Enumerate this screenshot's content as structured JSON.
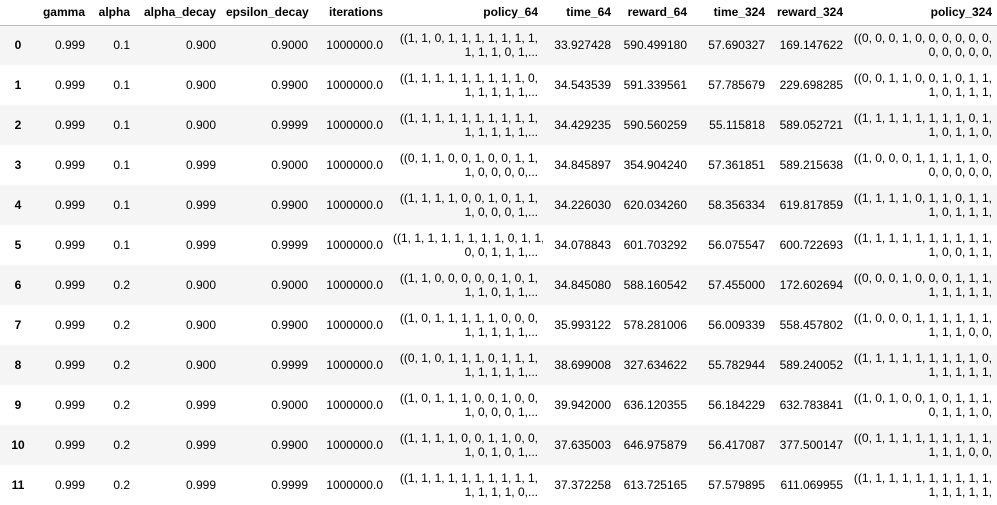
{
  "columns": [
    "",
    "gamma",
    "alpha",
    "alpha_decay",
    "epsilon_decay",
    "iterations",
    "policy_64",
    "time_64",
    "reward_64",
    "time_324",
    "reward_324",
    "policy_324"
  ],
  "rows": [
    {
      "index": "0",
      "gamma": "0.999",
      "alpha": "0.1",
      "alpha_decay": "0.900",
      "epsilon_decay": "0.9000",
      "iterations": "1000000.0",
      "policy_64": [
        "((1, 1, 0, 1, 1, 1, 1, 1, 1, 1,",
        "1, 1, 1, 0, 1,..."
      ],
      "time_64": "33.927428",
      "reward_64": "590.499180",
      "time_324": "57.690327",
      "reward_324": "169.147622",
      "policy_324": [
        "((0, 0, 0, 1, 0, 0, 0, 0, 0, 0,",
        "0, 0, 0, 0, 0,"
      ]
    },
    {
      "index": "1",
      "gamma": "0.999",
      "alpha": "0.1",
      "alpha_decay": "0.900",
      "epsilon_decay": "0.9900",
      "iterations": "1000000.0",
      "policy_64": [
        "((1, 1, 1, 1, 1, 1, 1, 1, 1, 0,",
        "1, 1, 1, 1, 1,..."
      ],
      "time_64": "34.543539",
      "reward_64": "591.339561",
      "time_324": "57.785679",
      "reward_324": "229.698285",
      "policy_324": [
        "((0, 0, 1, 1, 0, 0, 1, 0, 1, 1,",
        "1, 0, 1, 1, 1,"
      ]
    },
    {
      "index": "2",
      "gamma": "0.999",
      "alpha": "0.1",
      "alpha_decay": "0.900",
      "epsilon_decay": "0.9999",
      "iterations": "1000000.0",
      "policy_64": [
        "((1, 1, 1, 1, 1, 1, 1, 1, 1, 1,",
        "1, 1, 1, 1, 1,..."
      ],
      "time_64": "34.429235",
      "reward_64": "590.560259",
      "time_324": "55.115818",
      "reward_324": "589.052721",
      "policy_324": [
        "((1, 1, 1, 1, 1, 1, 1, 1, 0, 1,",
        "1, 0, 1, 1, 0,"
      ]
    },
    {
      "index": "3",
      "gamma": "0.999",
      "alpha": "0.1",
      "alpha_decay": "0.999",
      "epsilon_decay": "0.9000",
      "iterations": "1000000.0",
      "policy_64": [
        "((0, 1, 1, 0, 0, 1, 0, 0, 1, 1,",
        "1, 0, 0, 0, 0,..."
      ],
      "time_64": "34.845897",
      "reward_64": "354.904240",
      "time_324": "57.361851",
      "reward_324": "589.215638",
      "policy_324": [
        "((1, 0, 0, 0, 1, 1, 1, 1, 1, 0,",
        "0, 0, 0, 0, 0,"
      ]
    },
    {
      "index": "4",
      "gamma": "0.999",
      "alpha": "0.1",
      "alpha_decay": "0.999",
      "epsilon_decay": "0.9900",
      "iterations": "1000000.0",
      "policy_64": [
        "((1, 1, 1, 1, 0, 0, 1, 0, 1, 1,",
        "1, 0, 0, 0, 1,..."
      ],
      "time_64": "34.226030",
      "reward_64": "620.034260",
      "time_324": "58.356334",
      "reward_324": "619.817859",
      "policy_324": [
        "((1, 1, 1, 1, 0, 1, 1, 0, 1, 1,",
        "1, 0, 1, 1, 1,"
      ]
    },
    {
      "index": "5",
      "gamma": "0.999",
      "alpha": "0.1",
      "alpha_decay": "0.999",
      "epsilon_decay": "0.9999",
      "iterations": "1000000.0",
      "policy_64": [
        "((1, 1, 1, 1, 1, 1, 1, 1, 0, 1, 1,",
        "0, 0, 1, 1, 1,..."
      ],
      "time_64": "34.078843",
      "reward_64": "601.703292",
      "time_324": "56.075547",
      "reward_324": "600.722693",
      "policy_324": [
        "((1, 1, 1, 1, 1, 1, 1, 1, 1, 1,",
        "1, 0, 0, 1, 1,"
      ]
    },
    {
      "index": "6",
      "gamma": "0.999",
      "alpha": "0.2",
      "alpha_decay": "0.900",
      "epsilon_decay": "0.9000",
      "iterations": "1000000.0",
      "policy_64": [
        "((1, 1, 0, 0, 0, 0, 0, 1, 0, 1,",
        "1, 1, 0, 1, 1,..."
      ],
      "time_64": "34.845080",
      "reward_64": "588.160542",
      "time_324": "57.455000",
      "reward_324": "172.602694",
      "policy_324": [
        "((0, 0, 0, 1, 0, 0, 0, 1, 1, 1,",
        "1, 1, 1, 1, 1,"
      ]
    },
    {
      "index": "7",
      "gamma": "0.999",
      "alpha": "0.2",
      "alpha_decay": "0.900",
      "epsilon_decay": "0.9900",
      "iterations": "1000000.0",
      "policy_64": [
        "((1, 0, 1, 1, 1, 1, 1, 0, 0, 0,",
        "1, 1, 1, 1, 1,..."
      ],
      "time_64": "35.993122",
      "reward_64": "578.281006",
      "time_324": "56.009339",
      "reward_324": "558.457802",
      "policy_324": [
        "((1, 0, 0, 0, 1, 1, 1, 1, 1, 1,",
        "1, 1, 1, 0, 0,"
      ]
    },
    {
      "index": "8",
      "gamma": "0.999",
      "alpha": "0.2",
      "alpha_decay": "0.900",
      "epsilon_decay": "0.9999",
      "iterations": "1000000.0",
      "policy_64": [
        "((0, 1, 0, 1, 1, 1, 0, 1, 1, 1,",
        "1, 1, 1, 1, 1,..."
      ],
      "time_64": "38.699008",
      "reward_64": "327.634622",
      "time_324": "55.782944",
      "reward_324": "589.240052",
      "policy_324": [
        "((1, 1, 1, 1, 1, 1, 1, 1, 1, 0,",
        "1, 1, 1, 1, 1,"
      ]
    },
    {
      "index": "9",
      "gamma": "0.999",
      "alpha": "0.2",
      "alpha_decay": "0.999",
      "epsilon_decay": "0.9000",
      "iterations": "1000000.0",
      "policy_64": [
        "((1, 0, 1, 1, 1, 0, 0, 1, 0, 0,",
        "1, 0, 0, 0, 1,..."
      ],
      "time_64": "39.942000",
      "reward_64": "636.120355",
      "time_324": "56.184229",
      "reward_324": "632.783841",
      "policy_324": [
        "((1, 0, 1, 0, 0, 1, 0, 1, 1, 1,",
        "0, 1, 1, 1, 0,"
      ]
    },
    {
      "index": "10",
      "gamma": "0.999",
      "alpha": "0.2",
      "alpha_decay": "0.999",
      "epsilon_decay": "0.9900",
      "iterations": "1000000.0",
      "policy_64": [
        "((1, 1, 1, 1, 0, 0, 1, 1, 0, 0,",
        "1, 0, 1, 0, 1,..."
      ],
      "time_64": "37.635003",
      "reward_64": "646.975879",
      "time_324": "56.417087",
      "reward_324": "377.500147",
      "policy_324": [
        "((0, 1, 1, 1, 1, 1, 1, 1, 1, 1,",
        "1, 1, 1, 0, 0,"
      ]
    },
    {
      "index": "11",
      "gamma": "0.999",
      "alpha": "0.2",
      "alpha_decay": "0.999",
      "epsilon_decay": "0.9999",
      "iterations": "1000000.0",
      "policy_64": [
        "((1, 1, 1, 1, 1, 1, 1, 1, 1, 1,",
        "1, 1, 1, 1, 0,..."
      ],
      "time_64": "37.372258",
      "reward_64": "613.725165",
      "time_324": "57.579895",
      "reward_324": "611.069955",
      "policy_324": [
        "((1, 1, 1, 1, 1, 1, 1, 1, 1, 1,",
        "1, 1, 1, 1, 1,"
      ]
    }
  ]
}
